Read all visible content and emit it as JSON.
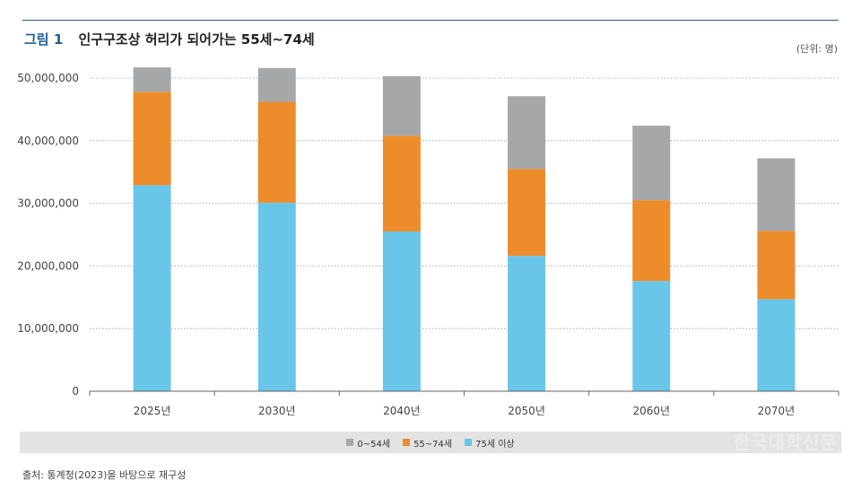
{
  "header": {
    "figure_label": "그림 1",
    "title": "인구구조상 허리가 되어가는 55세~74세",
    "unit": "(단위: 명)"
  },
  "chart_data": {
    "type": "bar",
    "stacked": true,
    "title": "인구구조상 허리가 되어가는 55세~74세",
    "xlabel": "",
    "ylabel": "",
    "ylim": [
      0,
      50000000
    ],
    "yticks": [
      0,
      10000000,
      20000000,
      30000000,
      40000000,
      50000000
    ],
    "ytick_labels": [
      "0",
      "10,000,000",
      "20,000,000",
      "30,000,000",
      "40,000,000",
      "50,000,000"
    ],
    "categories": [
      "2025년",
      "2030년",
      "2040년",
      "2050년",
      "2060년",
      "2070년"
    ],
    "series": [
      {
        "name": "75세 이상",
        "color": "#6ac6e8",
        "values": [
          32900000,
          30100000,
          25500000,
          21600000,
          17600000,
          14700000
        ]
      },
      {
        "name": "55~74세",
        "color": "#ed8c2b",
        "values": [
          14900000,
          16100000,
          15300000,
          13900000,
          12900000,
          10900000
        ]
      },
      {
        "name": "0~54세",
        "color": "#a6a7a9",
        "values": [
          3900000,
          5400000,
          9500000,
          11600000,
          11900000,
          11600000
        ]
      }
    ],
    "grid": true,
    "legend": "bottom"
  },
  "legend": {
    "items": [
      {
        "label": "0~54세",
        "color": "#a6a7a9"
      },
      {
        "label": "55~74세",
        "color": "#ed8c2b"
      },
      {
        "label": "75세 이상",
        "color": "#6ac6e8"
      }
    ],
    "watermark": "한국대학신문"
  },
  "source": "출처: 통계청(2023)을 바탕으로 재구성"
}
